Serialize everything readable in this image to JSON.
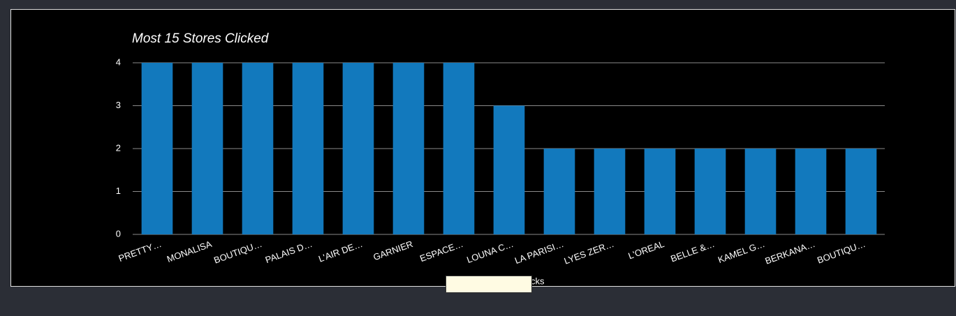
{
  "chart_data": {
    "type": "bar",
    "title": "Most 15 Stores Clicked",
    "categories": [
      "PRETTY…",
      "MONALISA",
      "BOUTIQU…",
      "PALAIS D…",
      "L'AIR DE…",
      "GARNIER",
      "ESPACE…",
      "LOUNA C…",
      "LA PARISI…",
      "LYES ZER…",
      "L'OREAL",
      "BELLE &…",
      "KAMEL G…",
      "BERKANA…",
      "BOUTIQU…"
    ],
    "values": [
      4,
      4,
      4,
      4,
      4,
      4,
      4,
      3,
      2,
      2,
      2,
      2,
      2,
      2,
      2
    ],
    "color": "#1279bd",
    "ylim": [
      0,
      4
    ],
    "yticks": [
      0,
      1,
      2,
      3,
      4
    ],
    "grid": true,
    "legend_text": "cks"
  }
}
